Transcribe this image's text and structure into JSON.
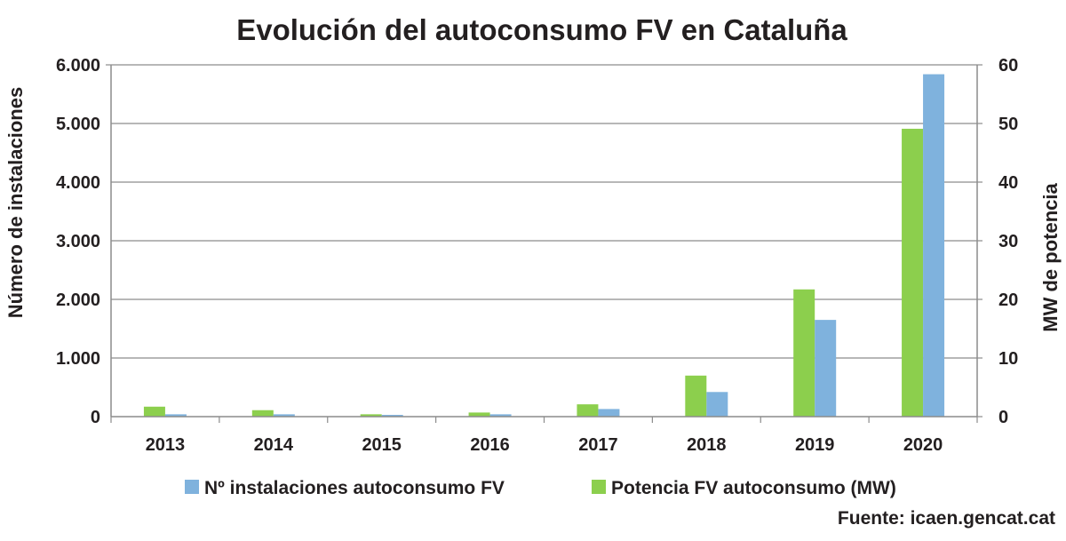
{
  "chart_data": {
    "type": "bar",
    "title": "Evolución del autoconsumo FV en Cataluña",
    "categories": [
      "2013",
      "2014",
      "2015",
      "2016",
      "2017",
      "2018",
      "2019",
      "2020"
    ],
    "y_left": {
      "label": "Número de instalaciones",
      "range": [
        0,
        6000
      ],
      "ticks": [
        0,
        1000,
        2000,
        3000,
        4000,
        5000,
        6000
      ],
      "tick_labels": [
        "0",
        "1.000",
        "2.000",
        "3.000",
        "4.000",
        "5.000",
        "6.000"
      ]
    },
    "y_right": {
      "label": "MW de potencia",
      "range": [
        0,
        60
      ],
      "ticks": [
        0,
        10,
        20,
        30,
        40,
        50,
        60
      ],
      "tick_labels": [
        "0",
        "10",
        "20",
        "30",
        "40",
        "50",
        "60"
      ]
    },
    "series": [
      {
        "name": "Potencia FV autoconsumo (MW)",
        "axis": "right",
        "color": "#8ccf4d",
        "values": [
          1.7,
          1.1,
          0.4,
          0.7,
          2.1,
          7.0,
          21.7,
          49.1
        ]
      },
      {
        "name": "Nº instalaciones autoconsumo FV",
        "axis": "left",
        "color": "#7fb2dd",
        "values": [
          40,
          40,
          30,
          40,
          130,
          420,
          1650,
          5840
        ]
      }
    ],
    "legend": {
      "position": "bottom",
      "items": [
        {
          "label": "Nº instalaciones autoconsumo FV",
          "color": "#7fb2dd"
        },
        {
          "label": "Potencia FV autoconsumo (MW)",
          "color": "#8ccf4d"
        }
      ]
    },
    "grid": true,
    "source": "Fuente: icaen.gencat.cat"
  }
}
